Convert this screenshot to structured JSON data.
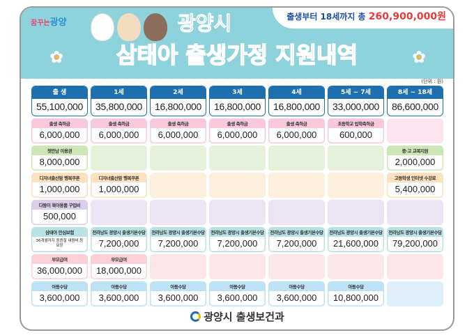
{
  "header": {
    "logo": "꿈꾸는",
    "logo_city": "광양",
    "city": "광양시",
    "title_pink": "삼태아",
    "title_blue": "출생가정 지원내역",
    "bubble_pre": "출생부터 18세까지 총",
    "bubble_total": "260,900,000원",
    "unit": "(단위 : 원)"
  },
  "columns": [
    {
      "label": "출 생",
      "total": "55,100,000"
    },
    {
      "label": "1세",
      "total": "35,800,000"
    },
    {
      "label": "2세",
      "total": "16,800,000"
    },
    {
      "label": "3세",
      "total": "16,800,000"
    },
    {
      "label": "4세",
      "total": "16,800,000"
    },
    {
      "label": "5세 ~ 7세",
      "total": "33,000,000"
    },
    {
      "label": "8세 ~ 18세",
      "total": "86,600,000"
    }
  ],
  "rows": [
    {
      "color": "#f8c8dc",
      "bg": "#fce3ee",
      "cells": [
        {
          "label": "출생 축하금",
          "value": "6,000,000"
        },
        {
          "label": "출생 축하금",
          "value": "6,000,000"
        },
        {
          "label": "출생 축하금",
          "value": "6,000,000"
        },
        {
          "label": "출생 축하금",
          "value": "6,000,000"
        },
        {
          "label": "출생 축하금",
          "value": "6,000,000"
        },
        {
          "label": "초등학교 입학축하금",
          "value": "600,000"
        },
        null
      ]
    },
    {
      "color": "#cde6b5",
      "bg": "#e5f1d8",
      "cells": [
        {
          "label": "첫만남 이용권",
          "value": "8,000,000"
        },
        null,
        null,
        null,
        null,
        null,
        {
          "label": "중·고 교복지원",
          "value": "2,000,000"
        }
      ]
    },
    {
      "color": "#fde0bd",
      "bg": "#fdefdd",
      "cells": [
        {
          "label": "디자녀출산맘 행복쿠폰",
          "value": "1,000,000"
        },
        {
          "label": "디자녀출산맘 행복쿠폰",
          "value": "1,000,000"
        },
        null,
        null,
        null,
        null,
        {
          "label": "고등학생 인터넷 수강료",
          "value": "5,400,000"
        }
      ]
    },
    {
      "color": "#dccdea",
      "bg": "#ebe4f2",
      "cells": [
        {
          "label": "다둥이 육아용품 구입비",
          "value": "500,000"
        },
        null,
        null,
        null,
        null,
        null,
        null
      ]
    },
    {
      "color": "#b8e2e6",
      "bg": "#ddf1f2",
      "cells": [
        {
          "label": "삼태아 안심보험",
          "value": "36개월까지 중증질 내원비 등 보장",
          "small": true
        },
        {
          "label": "전라남도 광양시 출생기본수당",
          "value": "7,200,000"
        },
        {
          "label": "전라남도 광양시 출생기본수당",
          "value": "7,200,000"
        },
        {
          "label": "전라남도 광양시 출생기본수당",
          "value": "7,200,000"
        },
        {
          "label": "전라남도 광양시 출생기본수당",
          "value": "7,200,000"
        },
        {
          "label": "전라남도 광양시 출생기본수당",
          "value": "21,600,000"
        },
        {
          "label": "전라남도 광양시 출생기본수당",
          "value": "79,200,000"
        }
      ]
    },
    {
      "color": "#fbd0d6",
      "bg": "#fde6e9",
      "cells": [
        {
          "label": "부모급여",
          "value": "36,000,000"
        },
        {
          "label": "부모급여",
          "value": "18,000,000"
        },
        null,
        null,
        null,
        null,
        null
      ]
    },
    {
      "color": "#bde2f5",
      "bg": "#ddeff9",
      "cells": [
        {
          "label": "아동수당",
          "value": "3,600,000"
        },
        {
          "label": "아동수당",
          "value": "3,600,000"
        },
        {
          "label": "아동수당",
          "value": "3,600,000"
        },
        {
          "label": "아동수당",
          "value": "3,600,000"
        },
        {
          "label": "아동수당",
          "value": "3,600,000"
        },
        {
          "label": "아동수당",
          "value": "10,800,000"
        },
        null
      ]
    }
  ],
  "footer": "광양시 출생보건과"
}
